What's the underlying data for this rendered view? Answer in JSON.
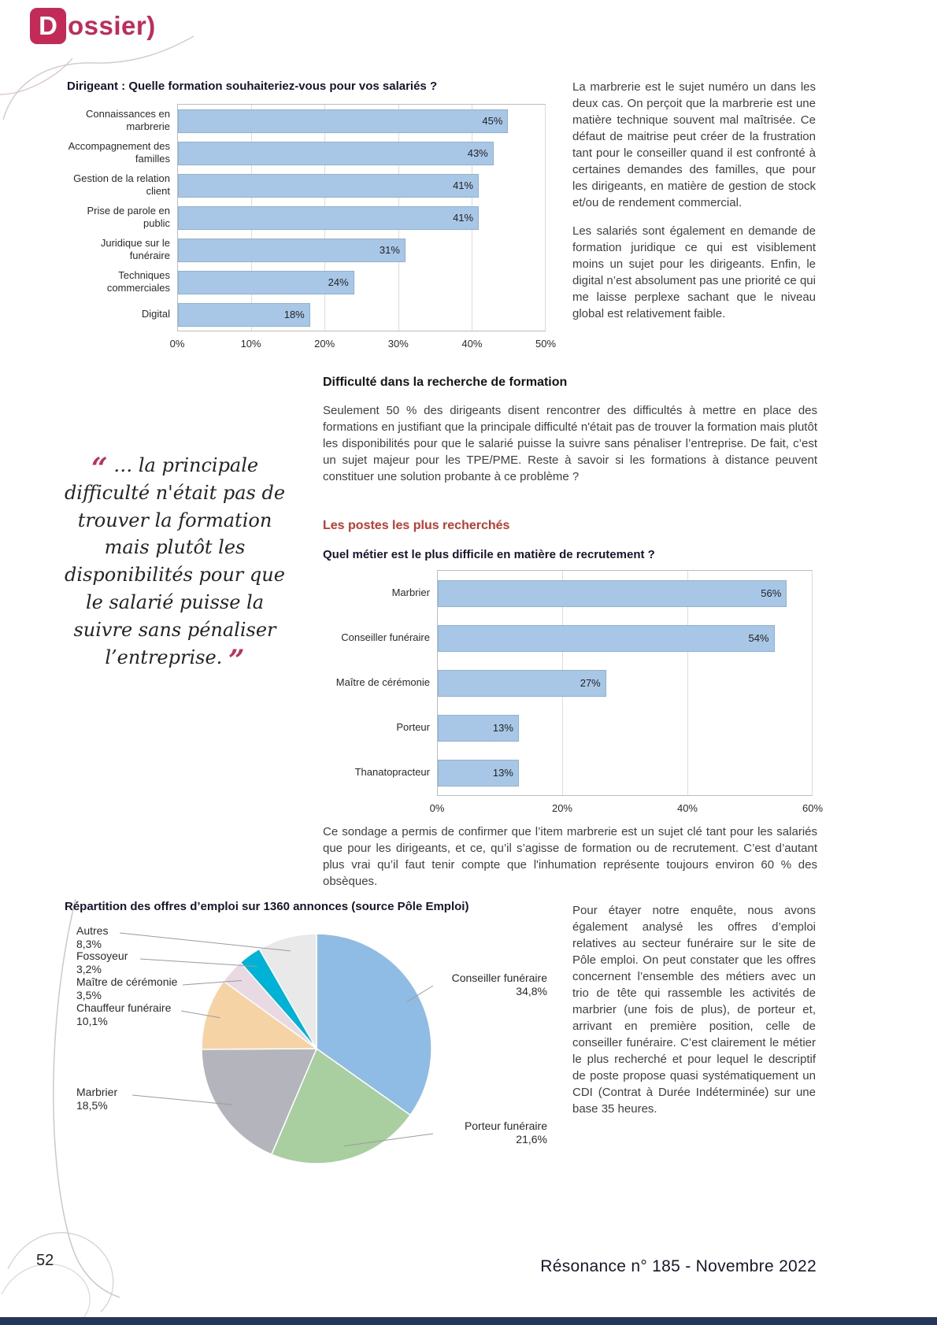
{
  "page": {
    "section_label_initial": "D",
    "section_label_rest": "ossier)",
    "page_number": "52",
    "footer": "Résonance n° 185 - Novembre 2022"
  },
  "intro_column": {
    "p1": "La marbrerie est le sujet numéro un dans les deux cas. On perçoit que la marbrerie est une matière technique souvent mal maîtrisée. Ce défaut de maitrise peut créer de la frustration tant pour le conseiller quand il est confronté à certaines demandes des familles, que pour les dirigeants, en matière de gestion de stock et/ou de rendement commercial.",
    "p2": "Les salariés sont également en demande de formation juridique ce qui est visiblement moins un sujet pour les dirigeants. Enfin, le digital n’est absolument pas une priorité ce qui me laisse perplexe sachant que le niveau global est relativement faible."
  },
  "formation_section": {
    "heading": "Difficulté dans la recherche de formation",
    "paragraph": "Seulement 50 % des dirigeants disent rencontrer des difficultés à mettre en place des formations en justifiant que la principale difficulté n'était pas de trouver la formation mais plutôt les disponibilités pour que le salarié puisse la suivre sans pénaliser l’entreprise. De fait, c’est un sujet majeur pour les TPE/PME. Reste à savoir si les formations à distance peuvent constituer une solution probante à ce problème ?"
  },
  "pull_quote": {
    "text": "… la principale difficulté n'était pas de trouver la formation mais plutôt les disponibilités pour que le salarié puisse la suivre sans pénaliser l’entreprise."
  },
  "postes_section": {
    "heading": "Les postes les plus recherchés",
    "conclusion": "Ce sondage a permis de confirmer que l’item marbrerie est un sujet clé tant pour les salariés que pour les dirigeants, et ce, qu’il s’agisse de formation ou de recrutement. C’est d’autant plus vrai qu’il faut tenir compte que l'inhumation représente toujours environ 60 % des obsèques."
  },
  "emploi_section": {
    "paragraph": "Pour étayer notre enquête, nous avons également analysé les offres d’emploi relatives au secteur funéraire sur le site de Pôle emploi. On peut constater que les offres concernent l’ensemble des métiers avec un trio de tête qui rassemble les activités de marbrier (une fois de plus), de porteur et, arrivant en première position, celle de conseiller funéraire. C’est clairement le métier le plus recherché et pour lequel le descriptif de poste propose quasi systématiquement un CDI (Contrat à Durée Indéterminée) sur une base 35 heures."
  },
  "chart_data": [
    {
      "id": "formation",
      "type": "bar",
      "orientation": "horizontal",
      "title": "Dirigeant : Quelle formation souhaiteriez-vous pour vos salariés ?",
      "categories": [
        "Connaissances en marbrerie",
        "Accompagnement des familles",
        "Gestion de la relation client",
        "Prise de parole en public",
        "Juridique sur le funéraire",
        "Techniques commerciales",
        "Digital"
      ],
      "values": [
        45,
        43,
        41,
        41,
        31,
        24,
        18
      ],
      "value_labels": [
        "45%",
        "43%",
        "41%",
        "41%",
        "31%",
        "24%",
        "18%"
      ],
      "xlim": [
        0,
        50
      ],
      "x_ticks": [
        "0%",
        "10%",
        "20%",
        "30%",
        "40%",
        "50%"
      ],
      "bar_color": "#a8c7e6",
      "grid": true,
      "legend": false
    },
    {
      "id": "recrutement",
      "type": "bar",
      "orientation": "horizontal",
      "title": "Quel métier est le plus difficile en matière de recrutement ?",
      "categories": [
        "Marbrier",
        "Conseiller funéraire",
        "Maître de cérémonie",
        "Porteur",
        "Thanatopracteur"
      ],
      "values": [
        56,
        54,
        27,
        13,
        13
      ],
      "value_labels": [
        "56%",
        "54%",
        "27%",
        "13%",
        "13%"
      ],
      "xlim": [
        0,
        60
      ],
      "x_ticks": [
        "0%",
        "20%",
        "40%",
        "60%"
      ],
      "bar_color": "#a8c7e6",
      "grid": true,
      "legend": false
    },
    {
      "id": "offres_emploi",
      "type": "pie",
      "title": "Répartition des offres d’emploi sur 1360 annonces (source Pôle Emploi)",
      "slices": [
        {
          "label": "Conseiller funéraire",
          "pct_label": "34,8%",
          "value": 34.8,
          "color": "#8fbce4"
        },
        {
          "label": "Porteur funéraire",
          "pct_label": "21,6%",
          "value": 21.6,
          "color": "#a9cfa1"
        },
        {
          "label": "Marbrier",
          "pct_label": "18,5%",
          "value": 18.5,
          "color": "#b4b4bc"
        },
        {
          "label": "Chauffeur funéraire",
          "pct_label": "10,1%",
          "value": 10.1,
          "color": "#f6d3a4"
        },
        {
          "label": "Maître de cérémonie",
          "pct_label": "3,5%",
          "value": 3.5,
          "color": "#e9d9e2"
        },
        {
          "label": "Fossoyeur",
          "pct_label": "3,2%",
          "value": 3.2,
          "color": "#00b2d6"
        },
        {
          "label": "Autres",
          "pct_label": "8,3%",
          "value": 8.3,
          "color": "#e9e9e9"
        }
      ]
    }
  ]
}
